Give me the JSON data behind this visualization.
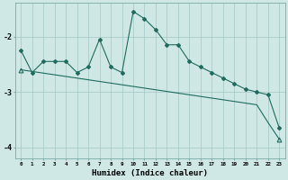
{
  "xlabel": "Humidex (Indice chaleur)",
  "background_color": "#cfe8e6",
  "grid_color": "#a8cdc9",
  "line_color": "#1f6b5e",
  "x_values": [
    0,
    1,
    2,
    3,
    4,
    5,
    6,
    7,
    8,
    9,
    10,
    11,
    12,
    13,
    14,
    15,
    16,
    17,
    18,
    19,
    20,
    21,
    22,
    23
  ],
  "series1": [
    -2.25,
    -2.65,
    -2.45,
    -2.45,
    -2.45,
    -2.65,
    -2.55,
    -2.05,
    -2.55,
    -2.65,
    -1.55,
    -1.68,
    -1.88,
    -2.15,
    -2.15,
    -2.45,
    -2.55,
    -2.65,
    -2.75,
    -2.85,
    -2.95,
    -3.0,
    -3.05,
    -3.65
  ],
  "series2": [
    -2.6,
    -2.63,
    -2.66,
    -2.69,
    -2.72,
    -2.75,
    -2.78,
    -2.81,
    -2.84,
    -2.87,
    -2.9,
    -2.93,
    -2.96,
    -2.99,
    -3.02,
    -3.05,
    -3.08,
    -3.11,
    -3.14,
    -3.17,
    -3.2,
    -3.23,
    -3.55,
    -3.85
  ],
  "ylim": [
    -4.2,
    -1.4
  ],
  "yticks": [
    -4,
    -3,
    -2
  ],
  "xlim": [
    -0.5,
    23.5
  ],
  "figwidth": 3.2,
  "figheight": 2.0,
  "dpi": 100
}
